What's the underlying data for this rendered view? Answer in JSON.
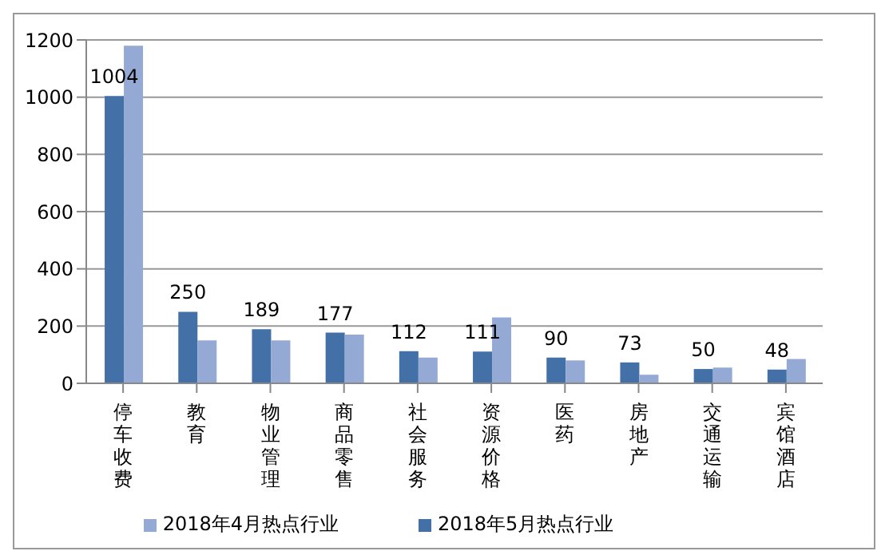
{
  "chart_data": {
    "type": "bar",
    "categories": [
      "停车收费",
      "教育",
      "物业管理",
      "商品零售",
      "社会服务",
      "资源价格",
      "医药",
      "房地产",
      "交通运输",
      "宾馆酒店"
    ],
    "series": [
      {
        "name": "2018年5月热点行业",
        "color": "#4470a8",
        "values": [
          1004,
          250,
          189,
          177,
          112,
          111,
          90,
          73,
          50,
          48
        ],
        "value_labels": [
          "1004",
          "250",
          "189",
          "177",
          "112",
          "111",
          "90",
          "73",
          "50",
          "48"
        ]
      },
      {
        "name": "2018年4月热点行业",
        "color": "#95a9d5",
        "values": [
          1180,
          150,
          150,
          170,
          90,
          230,
          80,
          30,
          55,
          85
        ]
      }
    ],
    "ylim": [
      0,
      1200
    ],
    "yticks": [
      0,
      200,
      400,
      600,
      800,
      1000,
      1200
    ],
    "grid": "y",
    "legend": "bottom"
  }
}
